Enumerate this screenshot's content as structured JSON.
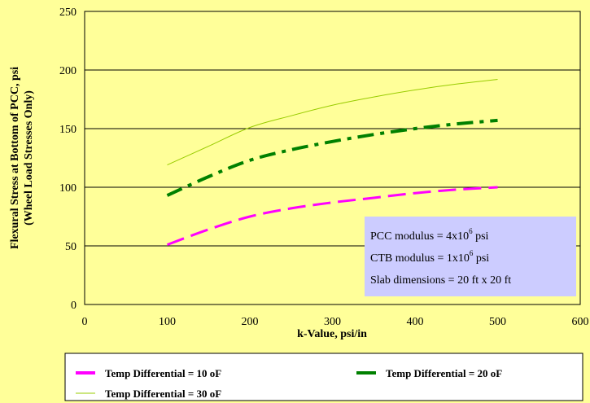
{
  "chart_data": {
    "type": "line",
    "title": "",
    "xlabel": "k-Value, psi/in",
    "ylabel_line1": "Flexural Stress at Bottom of PCC, psi",
    "ylabel_line2": "(Wheel Load Stresses Only)",
    "xlim": [
      0,
      600
    ],
    "ylim": [
      0,
      250
    ],
    "x_ticks": [
      "0",
      "100",
      "200",
      "300",
      "400",
      "500",
      "600"
    ],
    "y_ticks": [
      "0",
      "50",
      "100",
      "150",
      "200",
      "250"
    ],
    "grid": "horizontal",
    "legend_position": "bottom",
    "series": [
      {
        "name": "Temp Differential = 10 oF",
        "color": "#ff00ff",
        "style": "dashed",
        "x": [
          100,
          150,
          200,
          250,
          300,
          350,
          400,
          450,
          500
        ],
        "y": [
          51,
          64,
          75,
          82,
          87,
          91,
          95,
          98,
          100
        ]
      },
      {
        "name": "Temp Differential = 20 oF",
        "color": "#008000",
        "style": "dashdot",
        "x": [
          100,
          150,
          200,
          250,
          300,
          350,
          400,
          450,
          500
        ],
        "y": [
          93,
          109,
          123,
          132,
          139,
          145,
          150,
          154,
          157
        ]
      },
      {
        "name": "Temp Differential = 30 oF",
        "color": "#99cc00",
        "style": "solid",
        "x": [
          100,
          150,
          200,
          250,
          300,
          350,
          400,
          450,
          500
        ],
        "y": [
          119,
          135,
          151,
          161,
          170,
          177,
          183,
          188,
          192
        ]
      }
    ],
    "annotation": {
      "line1_prefix": "PCC modulus = 4x10",
      "line1_sup": "6",
      "line1_suffix": " psi",
      "line2_prefix": "CTB modulus = 1x10",
      "line2_sup": "6",
      "line2_suffix": " psi",
      "line3": "Slab dimensions = 20 ft x 20 ft",
      "background": "#ccccff"
    }
  }
}
